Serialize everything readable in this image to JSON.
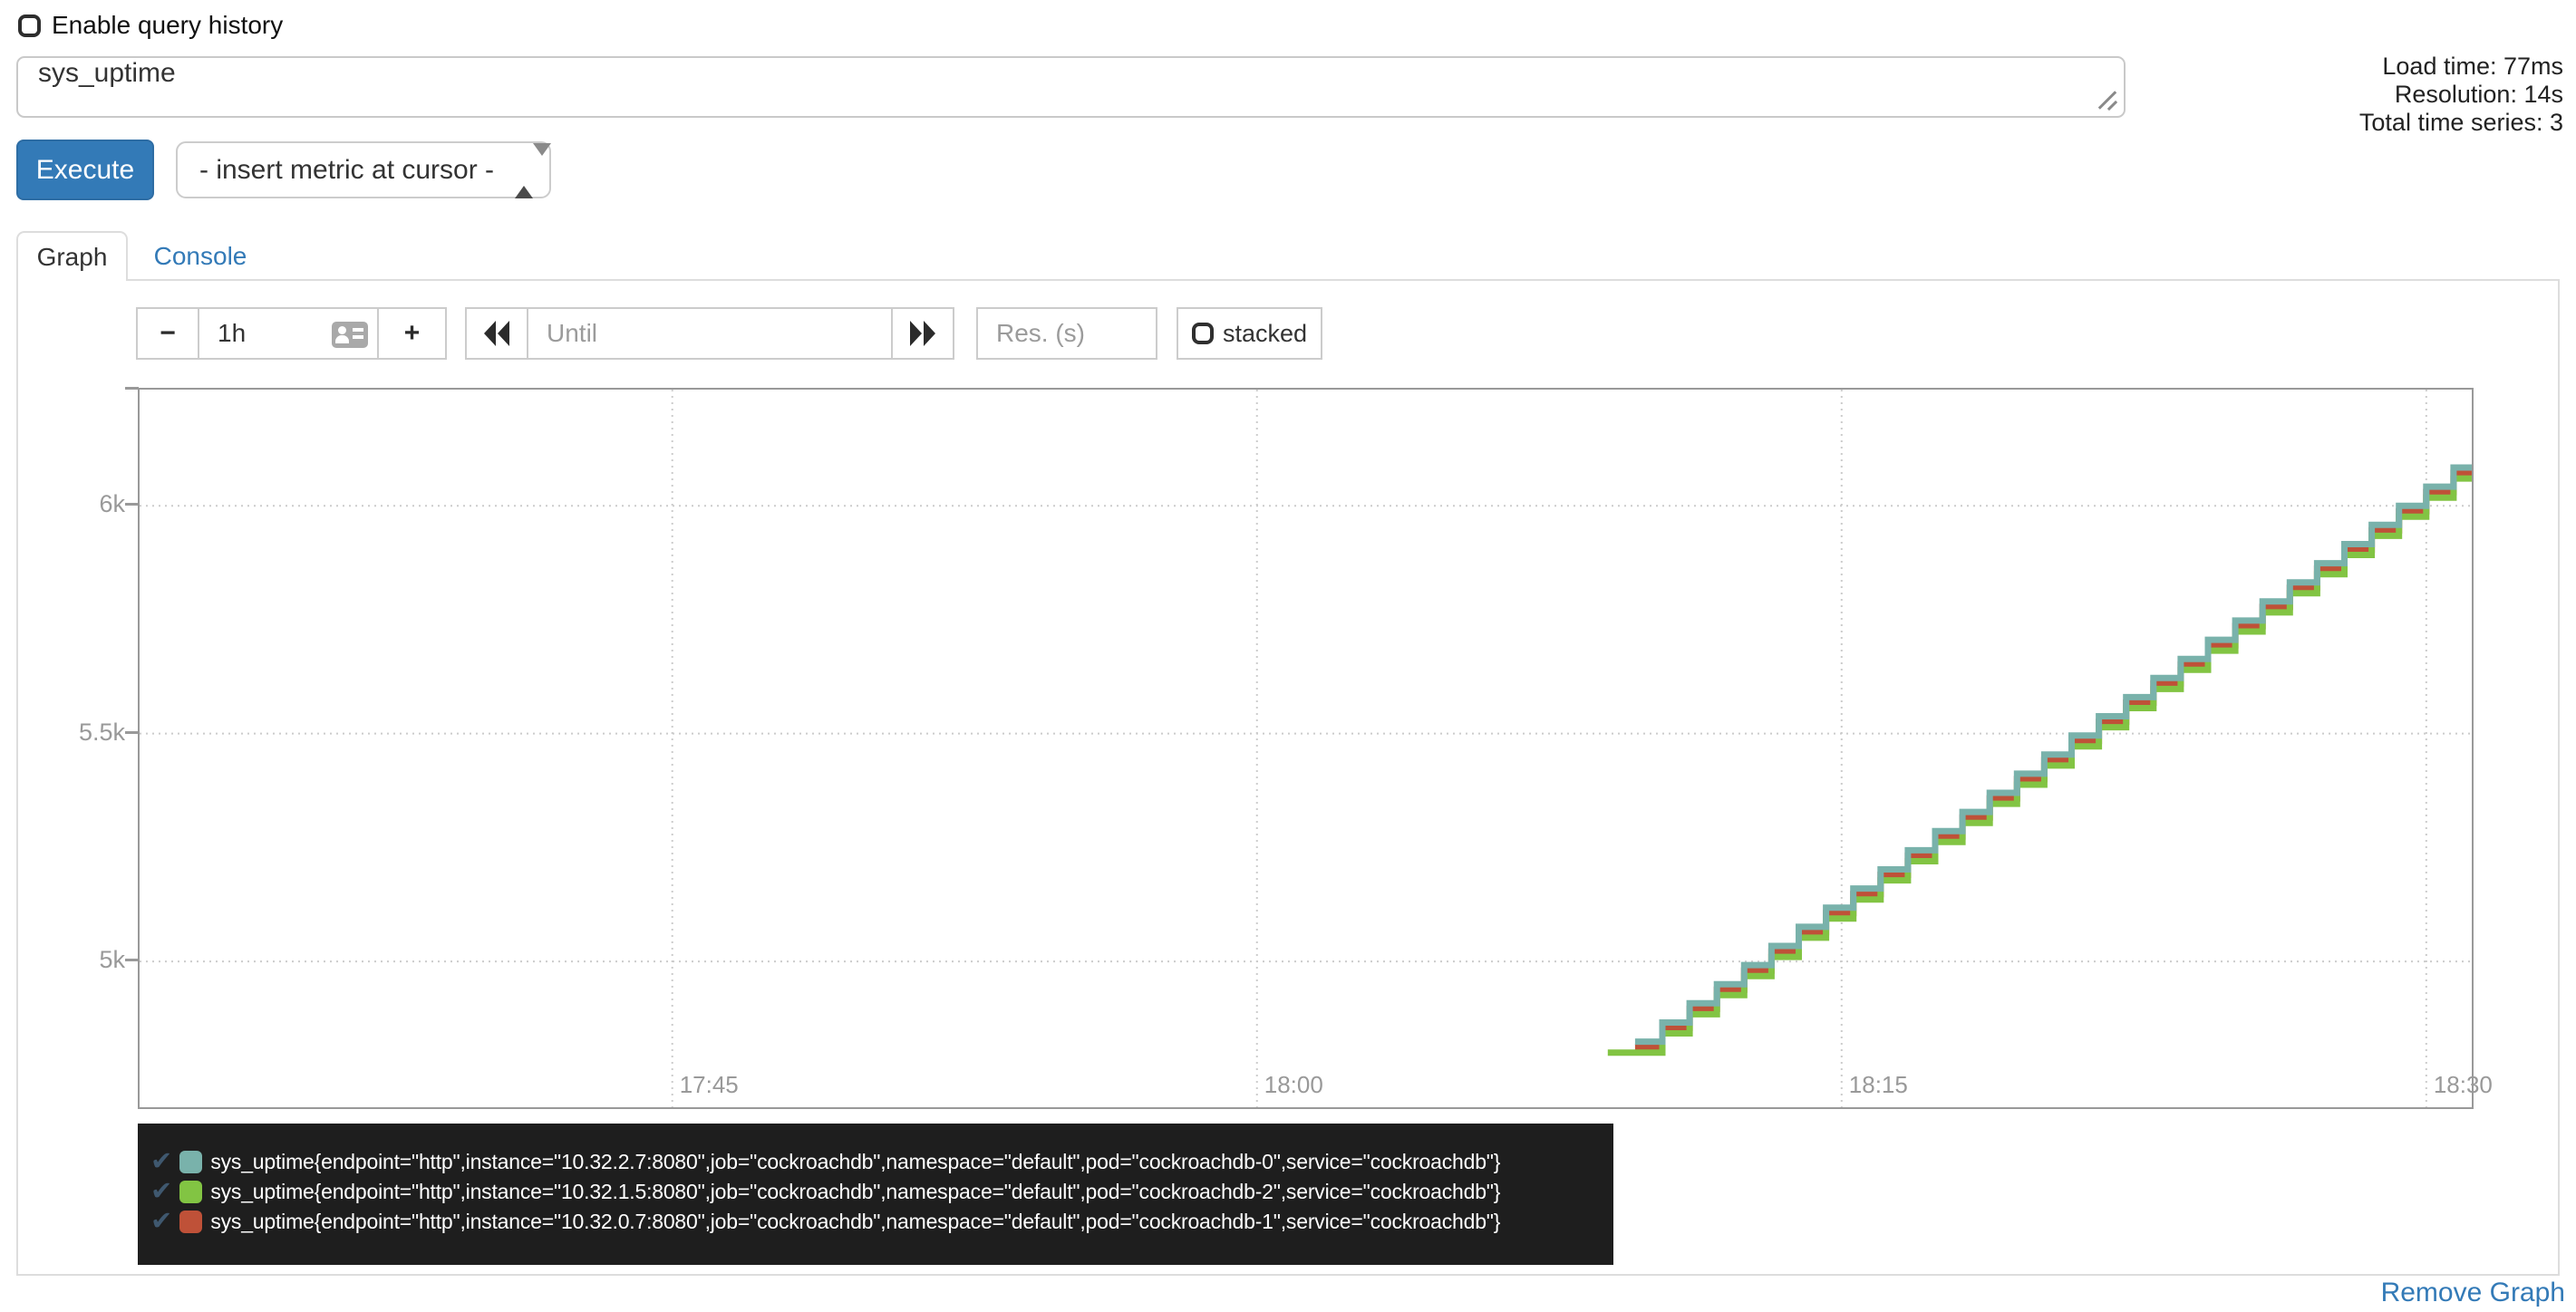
{
  "header": {
    "history_checkbox_label": "Enable query history",
    "query_value": "sys_uptime",
    "stats": [
      "Load time: 77ms",
      "Resolution: 14s",
      "Total time series: 3"
    ],
    "execute_label": "Execute",
    "metric_dropdown_value": "- insert metric at cursor -"
  },
  "tabs": {
    "graph": "Graph",
    "console": "Console"
  },
  "controls": {
    "minus_label": "−",
    "range_value": "1h",
    "plus_label": "+",
    "until_placeholder": "Until",
    "res_placeholder": "Res. (s)",
    "stacked_label": "stacked"
  },
  "icons": {
    "check": "✔"
  },
  "colors": {
    "accent": "#337ab7",
    "legend_bg": "#1e1e1e",
    "grid": "#cccccc",
    "axis": "#999999",
    "series_teal": "#79b2ab",
    "series_green": "#82c443",
    "series_red": "#bf5138"
  },
  "chart_data": {
    "type": "line",
    "step": true,
    "title": "",
    "xlabel": "",
    "ylabel": "",
    "x_domain": [
      "17:31:20",
      "18:31:10"
    ],
    "y_domain": [
      4680,
      6255
    ],
    "x_ticks": [
      {
        "label": "17:45",
        "time": "17:45:00"
      },
      {
        "label": "18:00",
        "time": "18:00:00"
      },
      {
        "label": "18:15",
        "time": "18:15:00"
      },
      {
        "label": "18:30",
        "time": "18:30:00"
      }
    ],
    "y_ticks": [
      {
        "label": "6k",
        "value": 6000
      },
      {
        "label": "5.5k",
        "value": 5500
      },
      {
        "label": "5k",
        "value": 5000
      }
    ],
    "series": [
      {
        "id": "cockroachdb-1",
        "name": "sys_uptime pod cockroachdb-1 (10.32.0.7:8080)",
        "color": "#bf5138",
        "times": [
          "18:09:42",
          "18:10:24",
          "18:11:06",
          "18:11:48",
          "18:12:30",
          "18:13:12",
          "18:13:54",
          "18:14:36",
          "18:15:18",
          "18:16:00",
          "18:16:42",
          "18:17:24",
          "18:18:06",
          "18:18:48",
          "18:19:30",
          "18:20:12",
          "18:20:54",
          "18:21:36",
          "18:22:18",
          "18:23:00",
          "18:23:42",
          "18:24:24",
          "18:25:06",
          "18:25:48",
          "18:26:30",
          "18:27:12",
          "18:27:54",
          "18:28:36",
          "18:29:18",
          "18:30:00",
          "18:30:42",
          "18:31:24"
        ],
        "values": [
          4812,
          4854,
          4896,
          4938,
          4980,
          5022,
          5064,
          5106,
          5148,
          5190,
          5232,
          5274,
          5316,
          5358,
          5400,
          5442,
          5484,
          5526,
          5568,
          5610,
          5652,
          5694,
          5736,
          5778,
          5820,
          5862,
          5904,
          5946,
          5988,
          6030,
          6072,
          6114
        ]
      },
      {
        "id": "cockroachdb-2",
        "name": "sys_uptime pod cockroachdb-2 (10.32.1.5:8080)",
        "color": "#82c443",
        "times": [
          "18:09:00",
          "18:09:42",
          "18:10:24",
          "18:11:06",
          "18:11:48",
          "18:12:30",
          "18:13:12",
          "18:13:54",
          "18:14:36",
          "18:15:18",
          "18:16:00",
          "18:16:42",
          "18:17:24",
          "18:18:06",
          "18:18:48",
          "18:19:30",
          "18:20:12",
          "18:20:54",
          "18:21:36",
          "18:22:18",
          "18:23:00",
          "18:23:42",
          "18:24:24",
          "18:25:06",
          "18:25:48",
          "18:26:30",
          "18:27:12",
          "18:27:54",
          "18:28:36",
          "18:29:18",
          "18:30:00",
          "18:30:42",
          "18:31:24"
        ],
        "values": [
          4800,
          4800,
          4842,
          4884,
          4926,
          4968,
          5010,
          5052,
          5094,
          5136,
          5178,
          5220,
          5262,
          5304,
          5346,
          5388,
          5430,
          5472,
          5514,
          5556,
          5598,
          5640,
          5682,
          5724,
          5766,
          5808,
          5850,
          5892,
          5934,
          5976,
          6018,
          6060,
          6102
        ]
      },
      {
        "id": "cockroachdb-0",
        "name": "sys_uptime pod cockroachdb-0 (10.32.2.7:8080)",
        "color": "#79b2ab",
        "times": [
          "18:09:42",
          "18:10:24",
          "18:11:06",
          "18:11:48",
          "18:12:30",
          "18:13:12",
          "18:13:54",
          "18:14:36",
          "18:15:18",
          "18:16:00",
          "18:16:42",
          "18:17:24",
          "18:18:06",
          "18:18:48",
          "18:19:30",
          "18:20:12",
          "18:20:54",
          "18:21:36",
          "18:22:18",
          "18:23:00",
          "18:23:42",
          "18:24:24",
          "18:25:06",
          "18:25:48",
          "18:26:30",
          "18:27:12",
          "18:27:54",
          "18:28:36",
          "18:29:18",
          "18:30:00",
          "18:30:42",
          "18:31:24"
        ],
        "values": [
          4824,
          4866,
          4908,
          4950,
          4992,
          5034,
          5076,
          5118,
          5160,
          5202,
          5244,
          5286,
          5328,
          5370,
          5412,
          5454,
          5496,
          5538,
          5580,
          5622,
          5664,
          5706,
          5748,
          5790,
          5832,
          5874,
          5916,
          5958,
          6000,
          6042,
          6084,
          6126
        ]
      }
    ]
  },
  "legend": [
    {
      "checked": true,
      "color": "#79b2ab",
      "label": "sys_uptime{endpoint=\"http\",instance=\"10.32.2.7:8080\",job=\"cockroachdb\",namespace=\"default\",pod=\"cockroachdb-0\",service=\"cockroachdb\"}"
    },
    {
      "checked": true,
      "color": "#82c443",
      "label": "sys_uptime{endpoint=\"http\",instance=\"10.32.1.5:8080\",job=\"cockroachdb\",namespace=\"default\",pod=\"cockroachdb-2\",service=\"cockroachdb\"}"
    },
    {
      "checked": true,
      "color": "#bf5138",
      "label": "sys_uptime{endpoint=\"http\",instance=\"10.32.0.7:8080\",job=\"cockroachdb\",namespace=\"default\",pod=\"cockroachdb-1\",service=\"cockroachdb\"}"
    }
  ],
  "footer": {
    "remove_graph_label": "Remove Graph"
  }
}
